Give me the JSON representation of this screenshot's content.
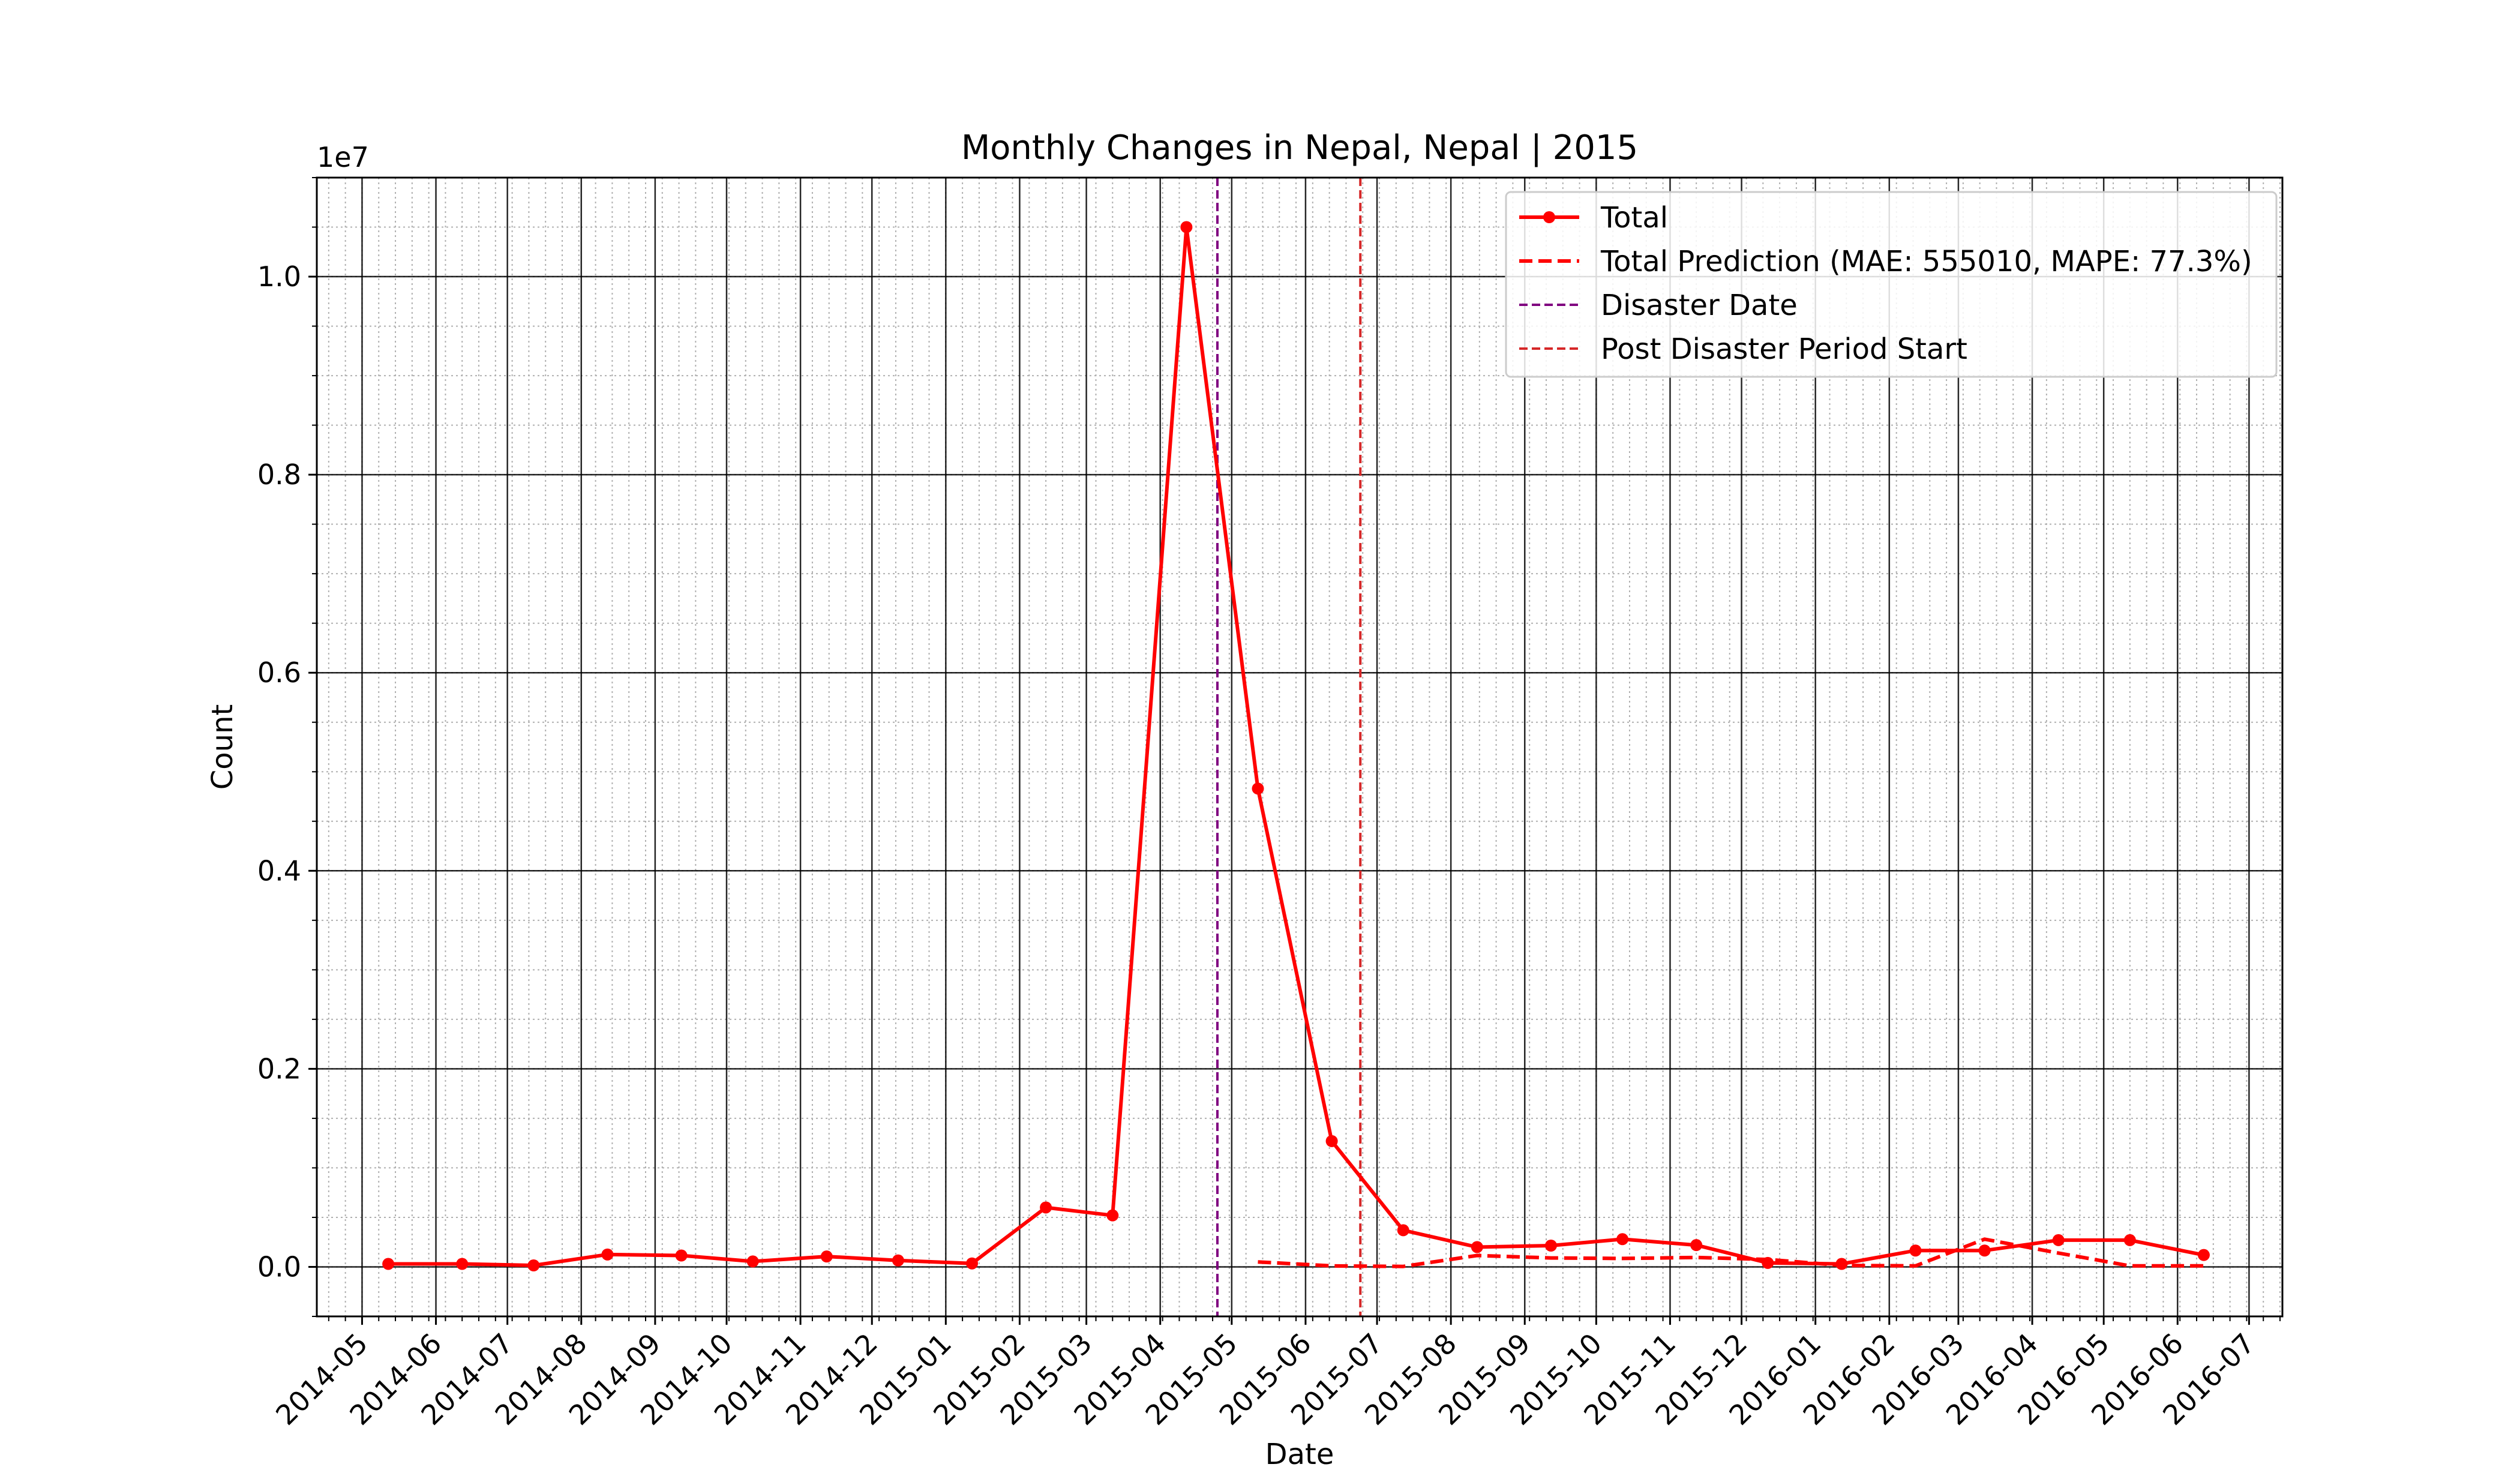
{
  "chart_data": {
    "type": "line",
    "title": "Monthly Changes in Nepal, Nepal | 2015",
    "xlabel": "Date",
    "ylabel": "Count",
    "y_offset_text": "1e7",
    "y_scale_factor": 10000000,
    "xlim": [
      "2014-04-12",
      "2016-07-15"
    ],
    "ylim": [
      -0.05,
      1.1
    ],
    "x_tick_labels": [
      "2014-05",
      "2014-06",
      "2014-07",
      "2014-08",
      "2014-09",
      "2014-10",
      "2014-11",
      "2014-12",
      "2015-01",
      "2015-02",
      "2015-03",
      "2015-04",
      "2015-05",
      "2015-06",
      "2015-07",
      "2015-08",
      "2015-09",
      "2015-10",
      "2015-11",
      "2015-12",
      "2016-01",
      "2016-02",
      "2016-03",
      "2016-04",
      "2016-05",
      "2016-06",
      "2016-07"
    ],
    "y_ticks": [
      0.0,
      0.2,
      0.4,
      0.6,
      0.8,
      1.0
    ],
    "y_tick_labels": [
      "0.0",
      "0.2",
      "0.4",
      "0.6",
      "0.8",
      "1.0"
    ],
    "grid": true,
    "minor_grid": true,
    "legend_position": "top-right",
    "series": [
      {
        "name": "Total",
        "color": "#ff0000",
        "style": "solid-marker",
        "x": [
          "2014-05-12",
          "2014-06-12",
          "2014-07-12",
          "2014-08-12",
          "2014-09-12",
          "2014-10-12",
          "2014-11-12",
          "2014-12-12",
          "2015-01-12",
          "2015-02-12",
          "2015-03-12",
          "2015-04-12",
          "2015-05-12",
          "2015-06-12",
          "2015-07-12",
          "2015-08-12",
          "2015-09-12",
          "2015-10-12",
          "2015-11-12",
          "2015-12-12",
          "2016-01-12",
          "2016-02-12",
          "2016-03-12",
          "2016-04-12",
          "2016-05-12",
          "2016-06-12"
        ],
        "y": [
          0.003,
          0.003,
          0.0015,
          0.0125,
          0.0115,
          0.0055,
          0.0105,
          0.0065,
          0.0035,
          0.06,
          0.052,
          1.05,
          0.483,
          0.127,
          0.037,
          0.02,
          0.0215,
          0.028,
          0.022,
          0.004,
          0.003,
          0.0165,
          0.0165,
          0.027,
          0.027,
          0.012
        ]
      },
      {
        "name": "Total Prediction (MAE: 555010, MAPE: 77.3%)",
        "color": "#ff0000",
        "style": "dashed",
        "x": [
          "2015-05-12",
          "2015-06-12",
          "2015-07-12",
          "2015-08-12",
          "2015-09-12",
          "2015-10-12",
          "2015-11-12",
          "2015-12-12",
          "2016-01-12",
          "2016-02-12",
          "2016-03-12",
          "2016-04-12",
          "2016-05-12",
          "2016-06-12"
        ],
        "y": [
          0.005,
          0.001,
          0.0005,
          0.0115,
          0.009,
          0.0085,
          0.0095,
          0.0075,
          0.0015,
          0.001,
          0.028,
          0.014,
          0.001,
          0.001
        ]
      }
    ],
    "vlines": [
      {
        "name": "Disaster Date",
        "x": "2015-04-25",
        "color": "#800080",
        "style": "dashed"
      },
      {
        "name": "Post Disaster Period Start",
        "x": "2015-06-24",
        "color": "#d62728",
        "style": "dashed"
      }
    ]
  }
}
